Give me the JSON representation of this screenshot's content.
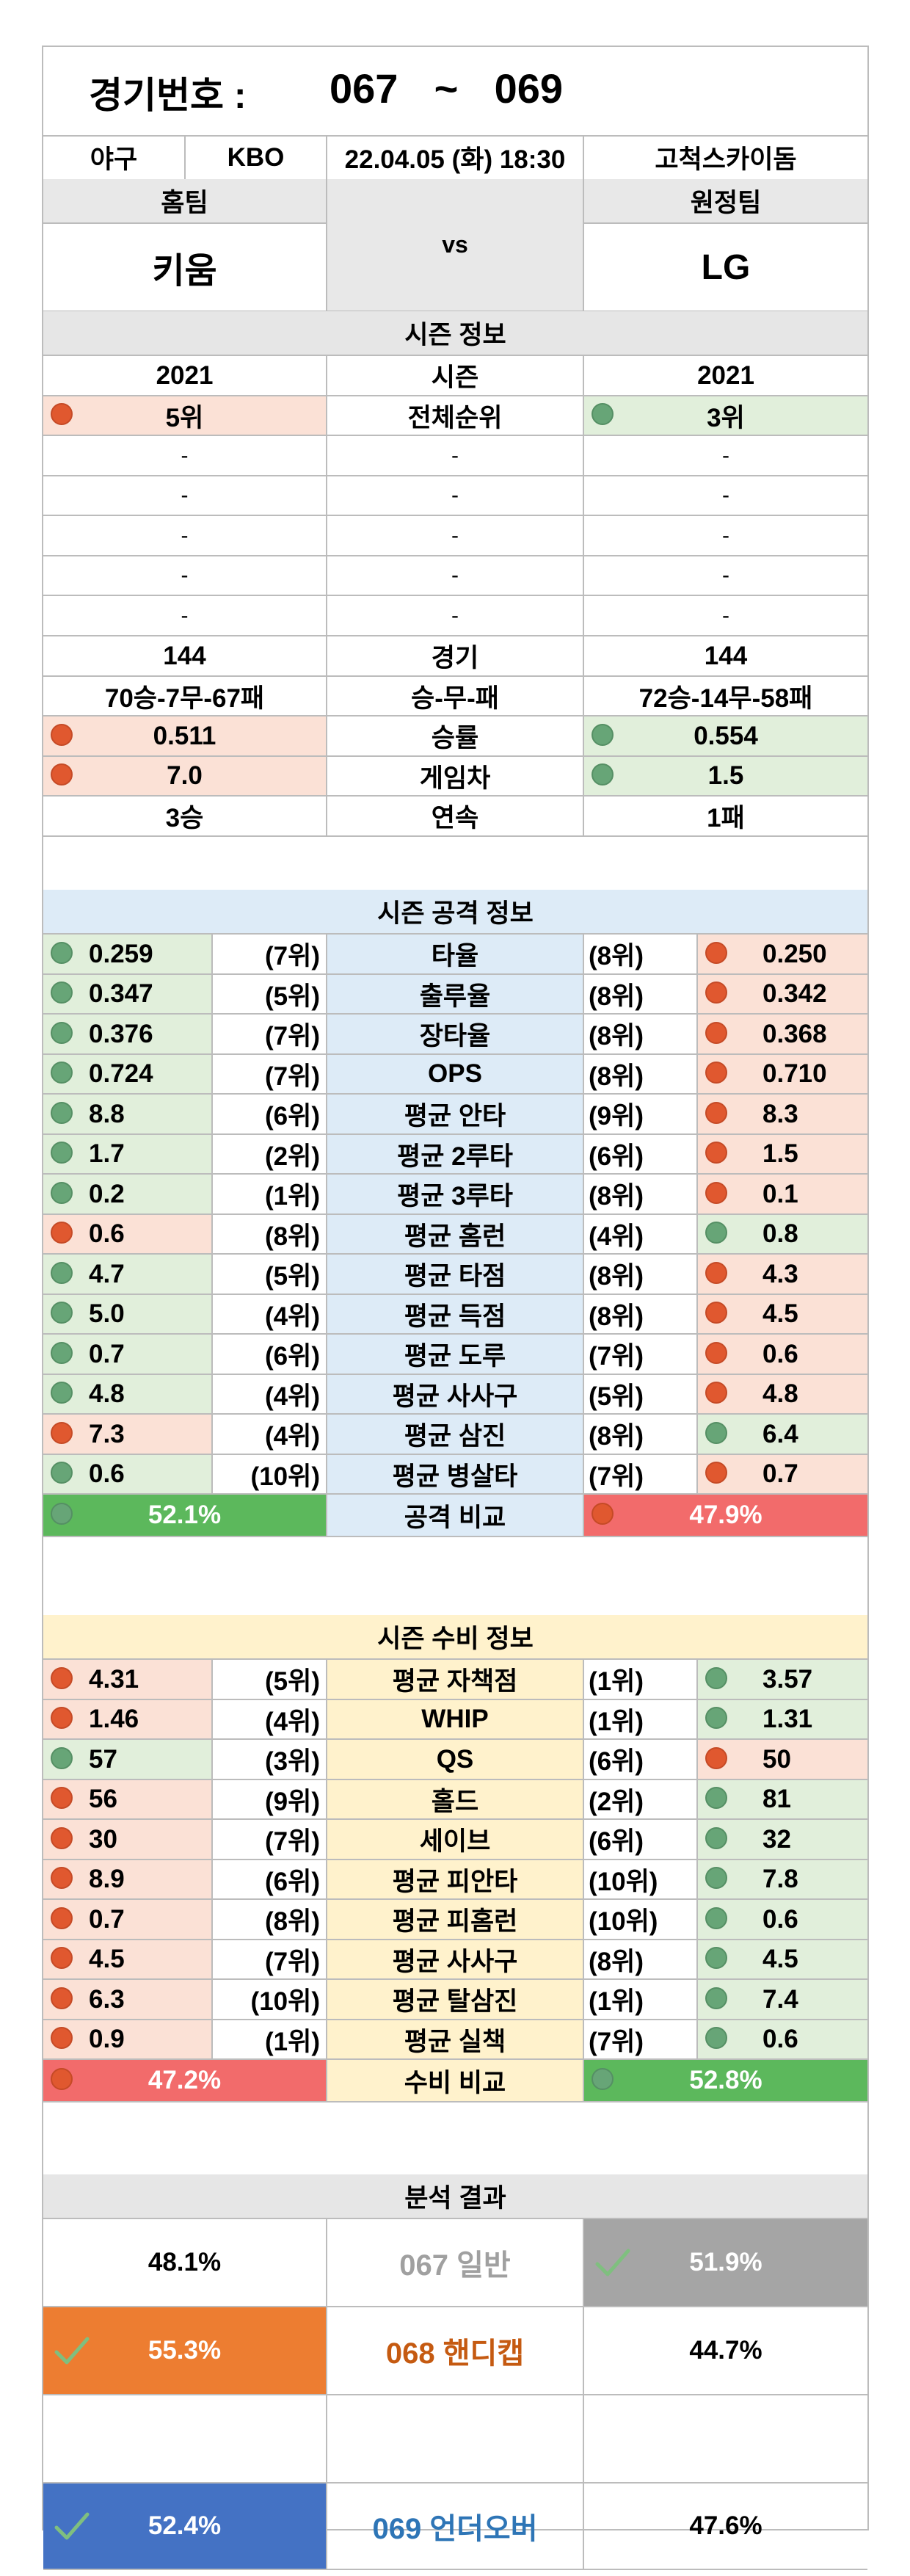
{
  "header": {
    "label": "경기번호 :",
    "from": "067",
    "tilde": "~",
    "to": "069"
  },
  "match": {
    "sport": "야구",
    "league": "KBO",
    "datetime": "22.04.05 (화) 18:30",
    "venue": "고척스카이돔"
  },
  "teams": {
    "home_label": "홈팀",
    "away_label": "원정팀",
    "home": "키움",
    "away": "LG",
    "vs": "vs"
  },
  "season": {
    "title": "시즌 정보",
    "rows": [
      {
        "home": "2021",
        "label": "시즌",
        "away": "2021"
      },
      {
        "home": "5위",
        "label": "전체순위",
        "away": "3위"
      },
      {
        "home": "-",
        "label": "-",
        "away": "-"
      },
      {
        "home": "-",
        "label": "-",
        "away": "-"
      },
      {
        "home": "-",
        "label": "-",
        "away": "-"
      },
      {
        "home": "-",
        "label": "-",
        "away": "-"
      },
      {
        "home": "-",
        "label": "-",
        "away": "-"
      },
      {
        "home": "144",
        "label": "경기",
        "away": "144"
      },
      {
        "home": "70승-7무-67패",
        "label": "승-무-패",
        "away": "72승-14무-58패"
      },
      {
        "home": "0.511",
        "label": "승률",
        "away": "0.554"
      },
      {
        "home": "7.0",
        "label": "게임차",
        "away": "1.5"
      },
      {
        "home": "3승",
        "label": "연속",
        "away": "1패"
      }
    ]
  },
  "offense": {
    "title": "시즌 공격 정보",
    "rows": [
      {
        "home": "0.259",
        "home_rank": "(7위)",
        "label": "타율",
        "away_rank": "(8위)",
        "away": "0.250"
      },
      {
        "home": "0.347",
        "home_rank": "(5위)",
        "label": "출루율",
        "away_rank": "(8위)",
        "away": "0.342"
      },
      {
        "home": "0.376",
        "home_rank": "(7위)",
        "label": "장타율",
        "away_rank": "(8위)",
        "away": "0.368"
      },
      {
        "home": "0.724",
        "home_rank": "(7위)",
        "label": "OPS",
        "away_rank": "(8위)",
        "away": "0.710"
      },
      {
        "home": "8.8",
        "home_rank": "(6위)",
        "label": "평균 안타",
        "away_rank": "(9위)",
        "away": "8.3"
      },
      {
        "home": "1.7",
        "home_rank": "(2위)",
        "label": "평균 2루타",
        "away_rank": "(6위)",
        "away": "1.5"
      },
      {
        "home": "0.2",
        "home_rank": "(1위)",
        "label": "평균 3루타",
        "away_rank": "(8위)",
        "away": "0.1"
      },
      {
        "home": "0.6",
        "home_rank": "(8위)",
        "label": "평균 홈런",
        "away_rank": "(4위)",
        "away": "0.8"
      },
      {
        "home": "4.7",
        "home_rank": "(5위)",
        "label": "평균 타점",
        "away_rank": "(8위)",
        "away": "4.3"
      },
      {
        "home": "5.0",
        "home_rank": "(4위)",
        "label": "평균 득점",
        "away_rank": "(8위)",
        "away": "4.5"
      },
      {
        "home": "0.7",
        "home_rank": "(6위)",
        "label": "평균 도루",
        "away_rank": "(7위)",
        "away": "0.6"
      },
      {
        "home": "4.8",
        "home_rank": "(4위)",
        "label": "평균 사사구",
        "away_rank": "(5위)",
        "away": "4.8"
      },
      {
        "home": "7.3",
        "home_rank": "(4위)",
        "label": "평균 삼진",
        "away_rank": "(8위)",
        "away": "6.4"
      },
      {
        "home": "0.6",
        "home_rank": "(10위)",
        "label": "평균 병살타",
        "away_rank": "(7위)",
        "away": "0.7"
      }
    ],
    "compare": {
      "home": "52.1%",
      "label": "공격 비교",
      "away": "47.9%"
    }
  },
  "defense": {
    "title": "시즌 수비 정보",
    "rows": [
      {
        "home": "4.31",
        "home_rank": "(5위)",
        "label": "평균 자책점",
        "away_rank": "(1위)",
        "away": "3.57"
      },
      {
        "home": "1.46",
        "home_rank": "(4위)",
        "label": "WHIP",
        "away_rank": "(1위)",
        "away": "1.31"
      },
      {
        "home": "57",
        "home_rank": "(3위)",
        "label": "QS",
        "away_rank": "(6위)",
        "away": "50"
      },
      {
        "home": "56",
        "home_rank": "(9위)",
        "label": "홀드",
        "away_rank": "(2위)",
        "away": "81"
      },
      {
        "home": "30",
        "home_rank": "(7위)",
        "label": "세이브",
        "away_rank": "(6위)",
        "away": "32"
      },
      {
        "home": "8.9",
        "home_rank": "(6위)",
        "label": "평균 피안타",
        "away_rank": "(10위)",
        "away": "7.8"
      },
      {
        "home": "0.7",
        "home_rank": "(8위)",
        "label": "평균 피홈런",
        "away_rank": "(10위)",
        "away": "0.6"
      },
      {
        "home": "4.5",
        "home_rank": "(7위)",
        "label": "평균 사사구",
        "away_rank": "(8위)",
        "away": "4.5"
      },
      {
        "home": "6.3",
        "home_rank": "(10위)",
        "label": "평균 탈삼진",
        "away_rank": "(1위)",
        "away": "7.4"
      },
      {
        "home": "0.9",
        "home_rank": "(1위)",
        "label": "평균 실책",
        "away_rank": "(7위)",
        "away": "0.6"
      }
    ],
    "compare": {
      "home": "47.2%",
      "label": "수비 비교",
      "away": "52.8%"
    }
  },
  "analysis": {
    "title": "분석 결과",
    "rows": [
      {
        "home": "48.1%",
        "num": "067",
        "label": "일반",
        "away": "51.9%"
      },
      {
        "home": "55.3%",
        "num": "068",
        "label": "핸디캡",
        "away": "44.7%"
      },
      {
        "home": "",
        "num": "",
        "label": "",
        "away": ""
      },
      {
        "home": "52.4%",
        "num": "069",
        "label": "언더오버",
        "away": "47.6%"
      }
    ]
  },
  "colors": {
    "red_dot": "#e0582f",
    "green_dot": "#67a577",
    "red_bg": "#fbe1d6",
    "green_bg": "#e1efdb",
    "offense_bg": "#ddebf7",
    "defense_bg": "#fff2cc",
    "compare_green": "#5cb85c",
    "compare_red": "#f26b6b",
    "pick_gray": "#a5a5a5",
    "pick_orange": "#ed7d31",
    "pick_blue": "#4472c4",
    "text_gray": "#a0a0a0",
    "text_orange": "#c55a11",
    "text_blue": "#2e75b6"
  }
}
